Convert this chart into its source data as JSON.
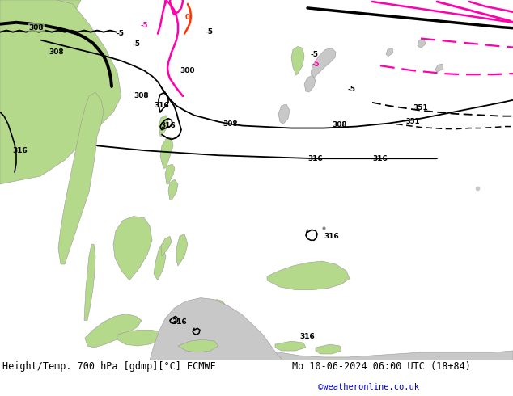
{
  "title_left": "Height/Temp. 700 hPa [gdmp][°C] ECMWF",
  "title_right": "Mo 10-06-2024 06:00 UTC (18+84)",
  "copyright": "©weatheronline.co.uk",
  "bg_color": "#ffffff",
  "land_green_color": "#b5d98b",
  "land_gray_color": "#c8c8c8",
  "sea_color": "#e8e8e8",
  "contour_black_color": "#000000",
  "contour_pink_color": "#ff00aa",
  "contour_red_color": "#ff3300",
  "title_fontsize": 8.5,
  "copyright_color": "#0000cc",
  "copyright_fontsize": 7.5,
  "figure_width": 6.34,
  "figure_height": 4.9,
  "dpi": 100
}
